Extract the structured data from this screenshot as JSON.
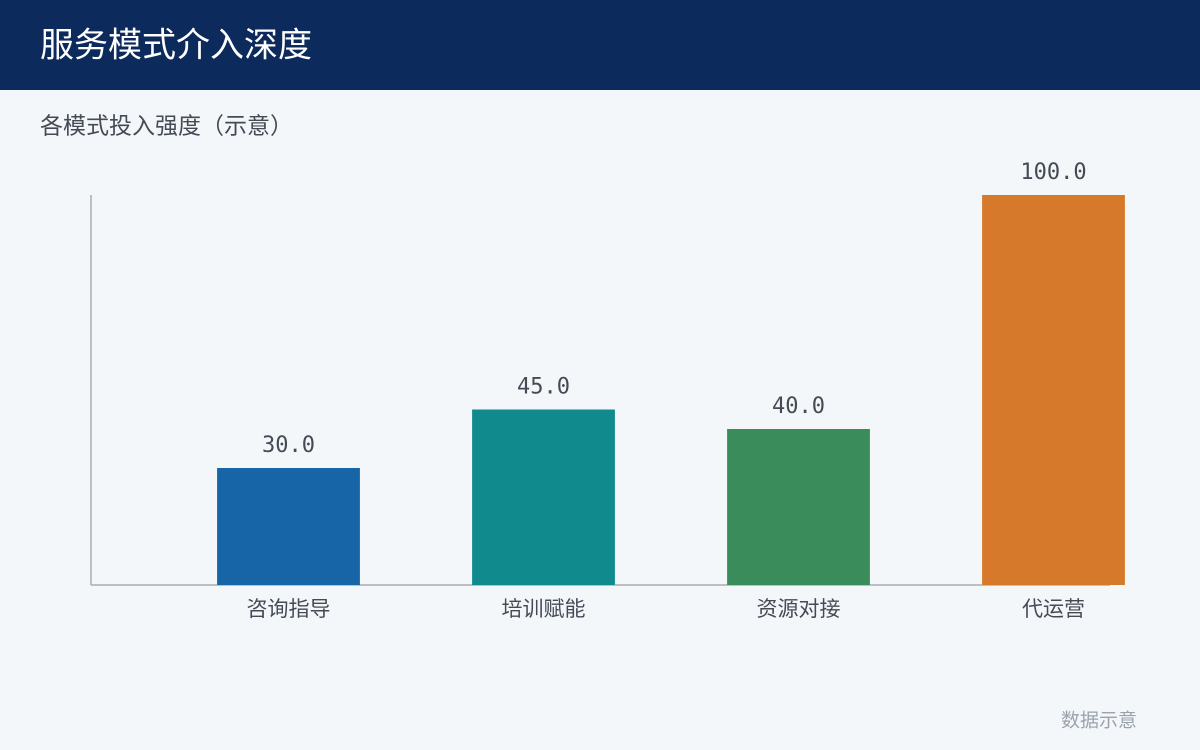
{
  "chart_data": {
    "type": "bar",
    "title": "服务模式介入深度",
    "subtitle": "各模式投入强度（示意）",
    "note": "数据示意",
    "categories": [
      "咨询指导",
      "培训赋能",
      "资源对接",
      "代运营"
    ],
    "values": [
      30,
      45,
      40,
      100
    ],
    "value_labels": [
      "30.0",
      "45.0",
      "40.0",
      "100.0"
    ],
    "colors": [
      "#1764a6",
      "#118a8d",
      "#3b8c5b",
      "#d6792a"
    ],
    "ylim": [
      0,
      100
    ],
    "grid": false
  }
}
